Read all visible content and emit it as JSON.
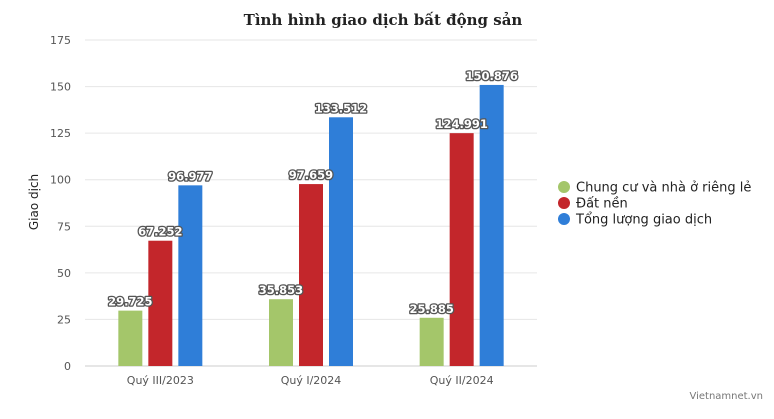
{
  "chart_data": {
    "type": "bar",
    "title": "Tình hình giao dịch bất động sản",
    "xlabel": "",
    "ylabel": "Giao dịch",
    "categories": [
      "Quý III/2023",
      "Quý I/2024",
      "Quý II/2024"
    ],
    "series": [
      {
        "name": "Chung cư và nhà ở riêng lẻ",
        "color": "#a4c66a",
        "values": [
          29.725,
          35.853,
          25.885
        ],
        "labels": [
          "29.725",
          "35.853",
          "25.885"
        ]
      },
      {
        "name": "Đất nền",
        "color": "#c3262b",
        "values": [
          67.252,
          97.659,
          124.991
        ],
        "labels": [
          "67.252",
          "97.659",
          "124.991"
        ]
      },
      {
        "name": "Tổng lượng giao dịch",
        "color": "#2f7ed8",
        "values": [
          96.977,
          133.512,
          150.876
        ],
        "labels": [
          "96.977",
          "133.512",
          "150.876"
        ]
      }
    ],
    "ylim": [
      0,
      175
    ],
    "yticks": [
      0,
      25,
      50,
      75,
      100,
      125,
      150,
      175
    ],
    "grid": true,
    "legend_position": "right"
  },
  "credit": "Vietnamnet.vn"
}
